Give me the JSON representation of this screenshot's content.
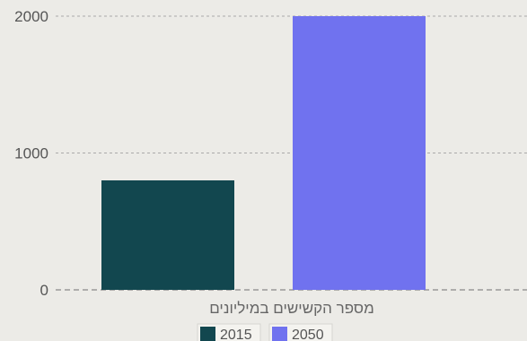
{
  "chart_data": {
    "type": "bar",
    "categories": [
      "מספר הקשישים במיליונים"
    ],
    "series": [
      {
        "name": "2015",
        "values": [
          800
        ],
        "color": "#12474f"
      },
      {
        "name": "2050",
        "values": [
          2000
        ],
        "color": "#7072ef"
      }
    ],
    "xlabel": "מספר הקשישים במיליונים",
    "ylabel": "",
    "ylim": [
      0,
      2000
    ],
    "yticks": [
      0,
      1000,
      2000
    ],
    "grid": true,
    "legend_position": "bottom-center"
  },
  "colors": {
    "background": "#ecebe7",
    "grid": "#aaaaaa"
  }
}
